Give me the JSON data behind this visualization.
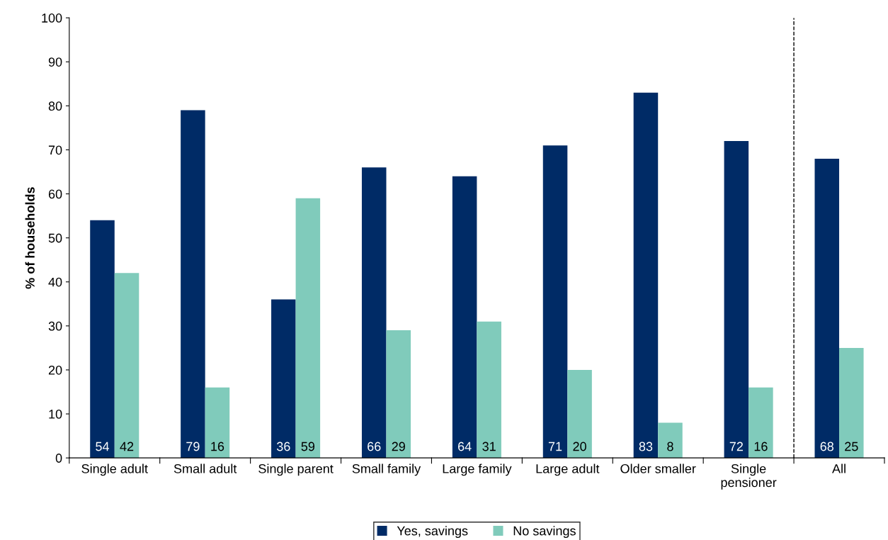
{
  "chart_data": {
    "type": "bar",
    "ylabel": "% of households",
    "categories": [
      "Single adult",
      "Small adult",
      "Single parent",
      "Small family",
      "Large family",
      "Large adult",
      "Older smaller",
      "Single\npensioner",
      "All"
    ],
    "series": [
      {
        "name": "Yes, savings",
        "color": "#002b66",
        "values": [
          54,
          79,
          36,
          66,
          64,
          71,
          83,
          72,
          68
        ]
      },
      {
        "name": "No savings",
        "color": "#80cbbb",
        "values": [
          42,
          16,
          59,
          29,
          31,
          20,
          8,
          16,
          25
        ]
      }
    ],
    "ylim": [
      0,
      100
    ],
    "yticks": [
      0,
      10,
      20,
      30,
      40,
      50,
      60,
      70,
      80,
      90,
      100
    ],
    "data_labels": true,
    "grid": false,
    "legend": "bottom"
  }
}
